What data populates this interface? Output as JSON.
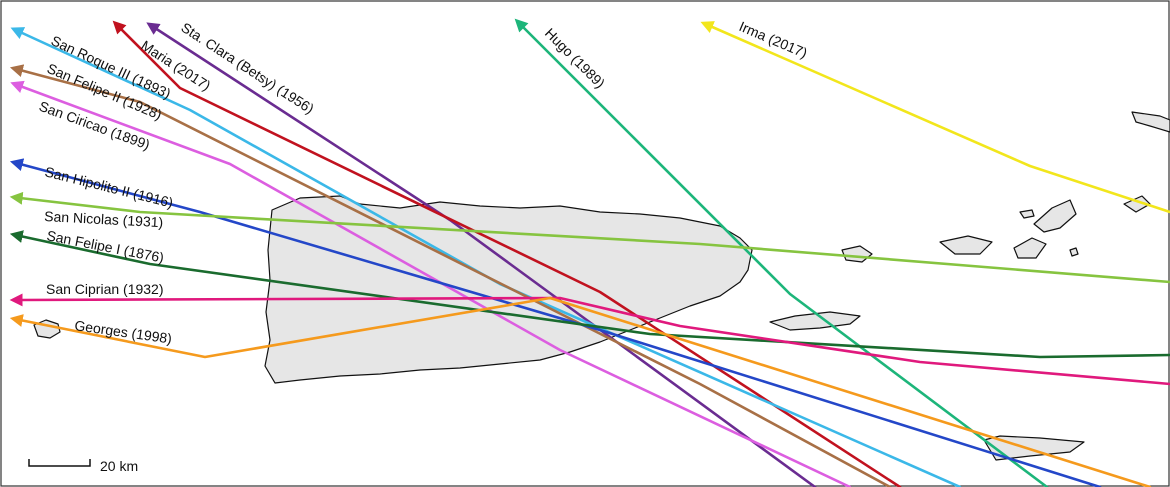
{
  "scale_bar": {
    "label": "20 km"
  },
  "hurricanes": [
    {
      "id": "irma",
      "name": "Irma (2017)",
      "color": "#f2e61c"
    },
    {
      "id": "hugo",
      "name": "Hugo (1989)",
      "color": "#1db57a"
    },
    {
      "id": "sta-clara",
      "name": "Sta. Clara (Betsy) (1956)",
      "color": "#6a2c91"
    },
    {
      "id": "maria",
      "name": "Maria (2017)",
      "color": "#c1121f"
    },
    {
      "id": "san-roque",
      "name": "San Roque III (1893)",
      "color": "#3bb8e8"
    },
    {
      "id": "san-felipe-ii",
      "name": "San Felipe II (1928)",
      "color": "#a87046"
    },
    {
      "id": "san-ciriaco",
      "name": "San Ciricao (1899)",
      "color": "#dc5ee0"
    },
    {
      "id": "san-hipolito",
      "name": "San Hipolito II (1916)",
      "color": "#2447c8"
    },
    {
      "id": "san-nicolas",
      "name": "San Nicolas (1931)",
      "color": "#86c440"
    },
    {
      "id": "san-felipe-i",
      "name": "San Felipe I (1876)",
      "color": "#1a6b2e"
    },
    {
      "id": "san-ciprian",
      "name": "San Ciprian (1932)",
      "color": "#e0197d"
    },
    {
      "id": "georges",
      "name": "Georges (1998)",
      "color": "#f59a1d"
    }
  ]
}
